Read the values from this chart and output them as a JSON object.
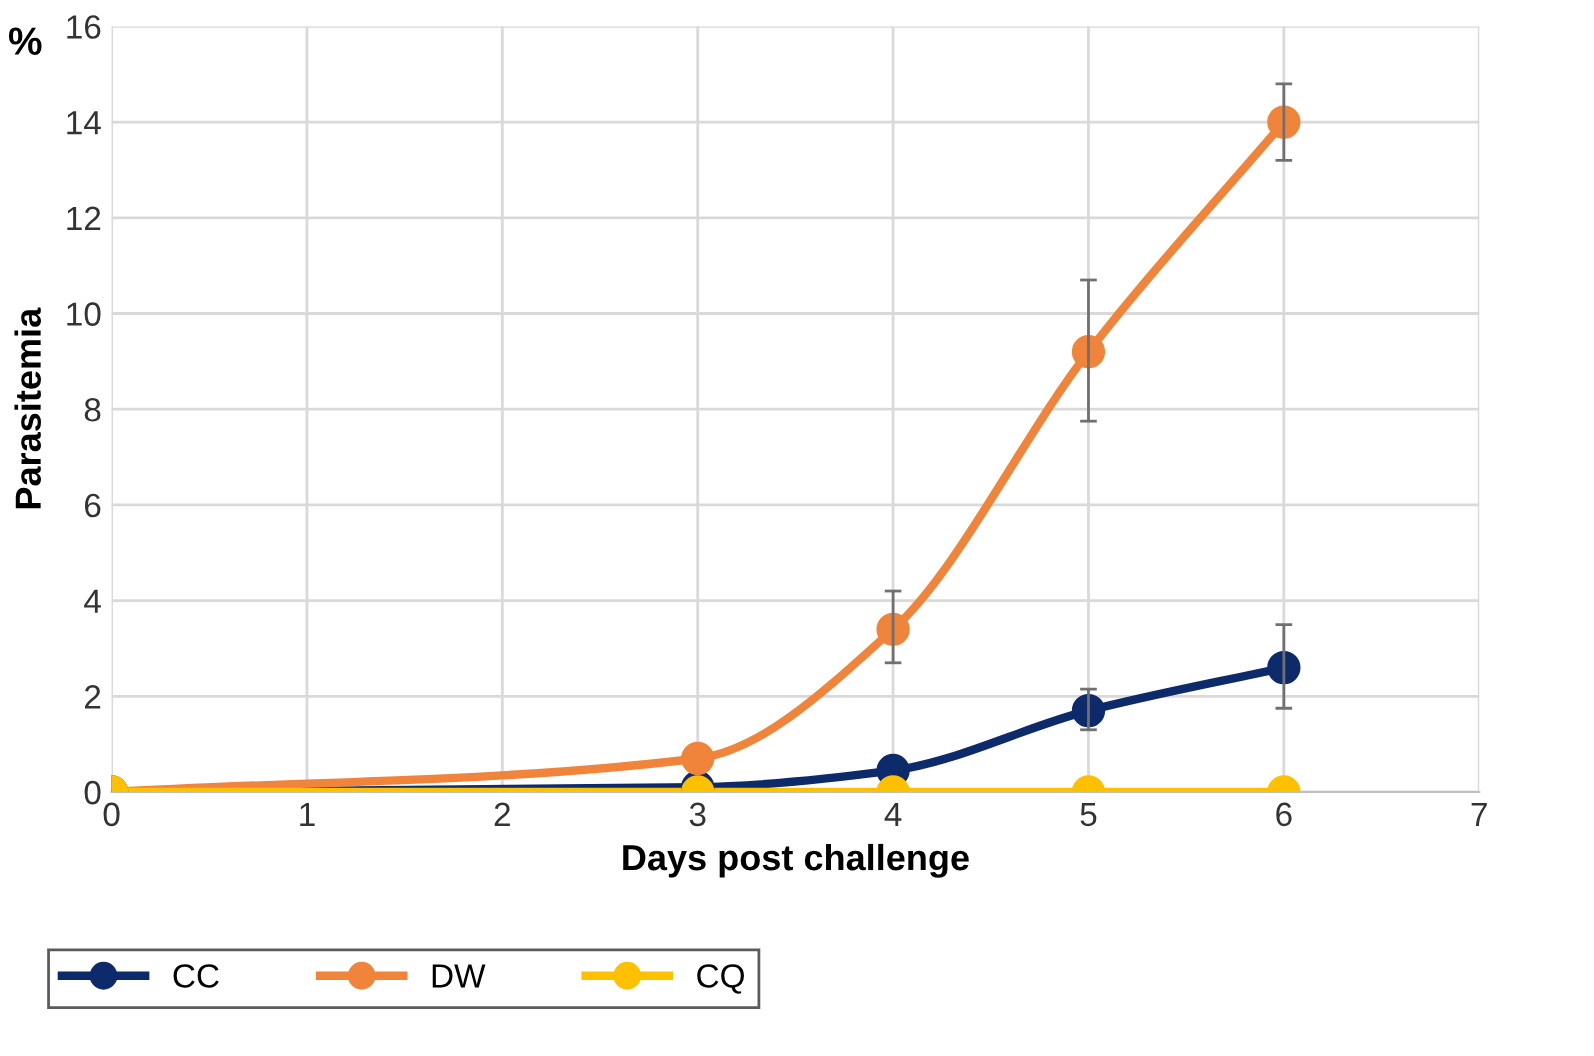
{
  "chart_data": {
    "type": "line",
    "xlabel": "Days post challenge",
    "ylabel": "Parasitemia",
    "annotations": [
      "%"
    ],
    "xlim": [
      0,
      7
    ],
    "xticks": [
      0,
      1,
      2,
      3,
      4,
      5,
      6,
      7
    ],
    "ylim": [
      0,
      16
    ],
    "yticks": [
      0,
      2,
      4,
      6,
      8,
      10,
      12,
      14,
      16
    ],
    "grid": true,
    "legend": "bottom left",
    "marker": "circle",
    "line_style": "solid",
    "x": [
      0,
      3,
      4,
      5,
      6
    ],
    "series": [
      {
        "name": "CC",
        "color": "#0d2a6b",
        "values": [
          0,
          0.1,
          0.45,
          1.7,
          2.6
        ],
        "errors": [
          null,
          null,
          null,
          [
            1.3,
            2.15
          ],
          [
            1.75,
            3.5
          ]
        ]
      },
      {
        "name": "DW",
        "color": "#f0843a",
        "values": [
          0,
          0.7,
          3.4,
          9.2,
          14.0
        ],
        "errors": [
          null,
          null,
          [
            2.7,
            4.2
          ],
          [
            7.75,
            10.7
          ],
          [
            13.2,
            14.8
          ]
        ]
      },
      {
        "name": "CQ",
        "color": "#ffc000",
        "values": [
          0,
          0,
          0,
          0,
          0
        ]
      }
    ]
  }
}
